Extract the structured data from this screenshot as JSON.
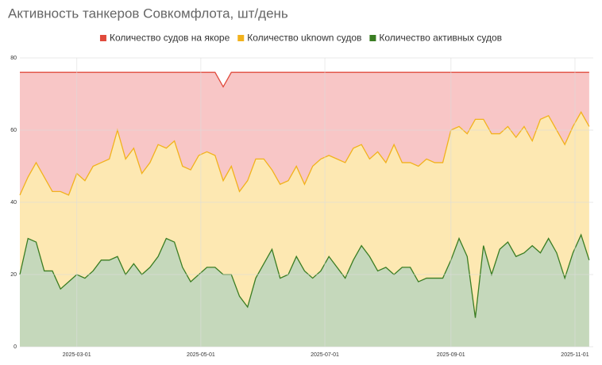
{
  "chart_data": {
    "type": "stacked-area",
    "title": "Активность танкеров Совкомфлота, шт/день",
    "x": [
      "2025-02-01",
      "2025-02-05",
      "2025-02-09",
      "2025-02-13",
      "2025-02-17",
      "2025-02-21",
      "2025-02-25",
      "2025-03-01",
      "2025-03-05",
      "2025-03-09",
      "2025-03-13",
      "2025-03-17",
      "2025-03-21",
      "2025-03-25",
      "2025-03-29",
      "2025-04-02",
      "2025-04-06",
      "2025-04-10",
      "2025-04-14",
      "2025-04-18",
      "2025-04-22",
      "2025-04-26",
      "2025-04-30",
      "2025-05-04",
      "2025-05-08",
      "2025-05-12",
      "2025-05-16",
      "2025-05-20",
      "2025-05-24",
      "2025-05-28",
      "2025-06-01",
      "2025-06-05",
      "2025-06-09",
      "2025-06-13",
      "2025-06-17",
      "2025-06-21",
      "2025-06-25",
      "2025-06-29",
      "2025-07-03",
      "2025-07-07",
      "2025-07-11",
      "2025-07-15",
      "2025-07-19",
      "2025-07-23",
      "2025-07-27",
      "2025-07-31",
      "2025-08-04",
      "2025-08-08",
      "2025-08-12",
      "2025-08-16",
      "2025-08-20",
      "2025-08-24",
      "2025-08-28",
      "2025-09-01",
      "2025-09-05",
      "2025-09-09",
      "2025-09-13",
      "2025-09-17",
      "2025-09-21",
      "2025-09-25",
      "2025-09-29",
      "2025-10-03",
      "2025-10-07",
      "2025-10-11",
      "2025-10-15",
      "2025-10-19",
      "2025-10-23",
      "2025-10-27",
      "2025-10-31",
      "2025-11-04",
      "2025-11-08"
    ],
    "series": [
      {
        "name": "Количество судов на якоре",
        "color": "#e04a3c",
        "fill": "#f8c6c6",
        "values": [
          34,
          29,
          25,
          29,
          33,
          33,
          34,
          28,
          30,
          26,
          25,
          24,
          16,
          24,
          21,
          28,
          25,
          20,
          21,
          19,
          26,
          27,
          23,
          22,
          23,
          26,
          26,
          33,
          30,
          24,
          24,
          27,
          31,
          30,
          26,
          31,
          26,
          24,
          23,
          24,
          25,
          21,
          20,
          24,
          22,
          25,
          20,
          25,
          25,
          26,
          24,
          25,
          25,
          16,
          15,
          17,
          13,
          13,
          17,
          17,
          15,
          18,
          15,
          19,
          13,
          12,
          16,
          20,
          15,
          11,
          15
        ]
      },
      {
        "name": "Количество uknown судов",
        "color": "#f2b21c",
        "fill": "#fde8b2",
        "values": [
          22,
          17,
          22,
          26,
          22,
          27,
          24,
          28,
          27,
          29,
          27,
          28,
          35,
          32,
          32,
          28,
          29,
          31,
          25,
          28,
          28,
          31,
          33,
          32,
          31,
          26,
          30,
          29,
          35,
          33,
          29,
          22,
          26,
          26,
          25,
          24,
          31,
          31,
          28,
          30,
          32,
          31,
          28,
          27,
          33,
          29,
          36,
          29,
          29,
          32,
          33,
          32,
          32,
          36,
          31,
          34,
          55,
          35,
          39,
          32,
          32,
          33,
          35,
          29,
          37,
          34,
          34,
          37,
          35,
          34,
          37
        ]
      },
      {
        "name": "Количество активных судов",
        "color": "#3a7d22",
        "fill": "#c5d8bb",
        "values": [
          20,
          30,
          29,
          21,
          21,
          16,
          18,
          20,
          19,
          21,
          24,
          24,
          25,
          20,
          23,
          20,
          22,
          25,
          30,
          29,
          22,
          18,
          20,
          22,
          22,
          20,
          20,
          14,
          11,
          19,
          23,
          27,
          19,
          20,
          25,
          21,
          19,
          21,
          25,
          22,
          19,
          24,
          28,
          25,
          21,
          22,
          20,
          22,
          22,
          18,
          19,
          19,
          19,
          24,
          30,
          25,
          8,
          28,
          20,
          27,
          29,
          25,
          26,
          28,
          26,
          30,
          26,
          19,
          26,
          31,
          24
        ]
      }
    ],
    "xlim": [
      "2025-02-01",
      "2025-11-10"
    ],
    "xticks": [
      "2025-03-01",
      "2025-05-01",
      "2025-07-01",
      "2025-09-01",
      "2025-11-01"
    ],
    "ylim": [
      0,
      80
    ],
    "yticks": [
      0,
      20,
      40,
      60,
      80
    ],
    "grid": true,
    "legend": "top"
  }
}
